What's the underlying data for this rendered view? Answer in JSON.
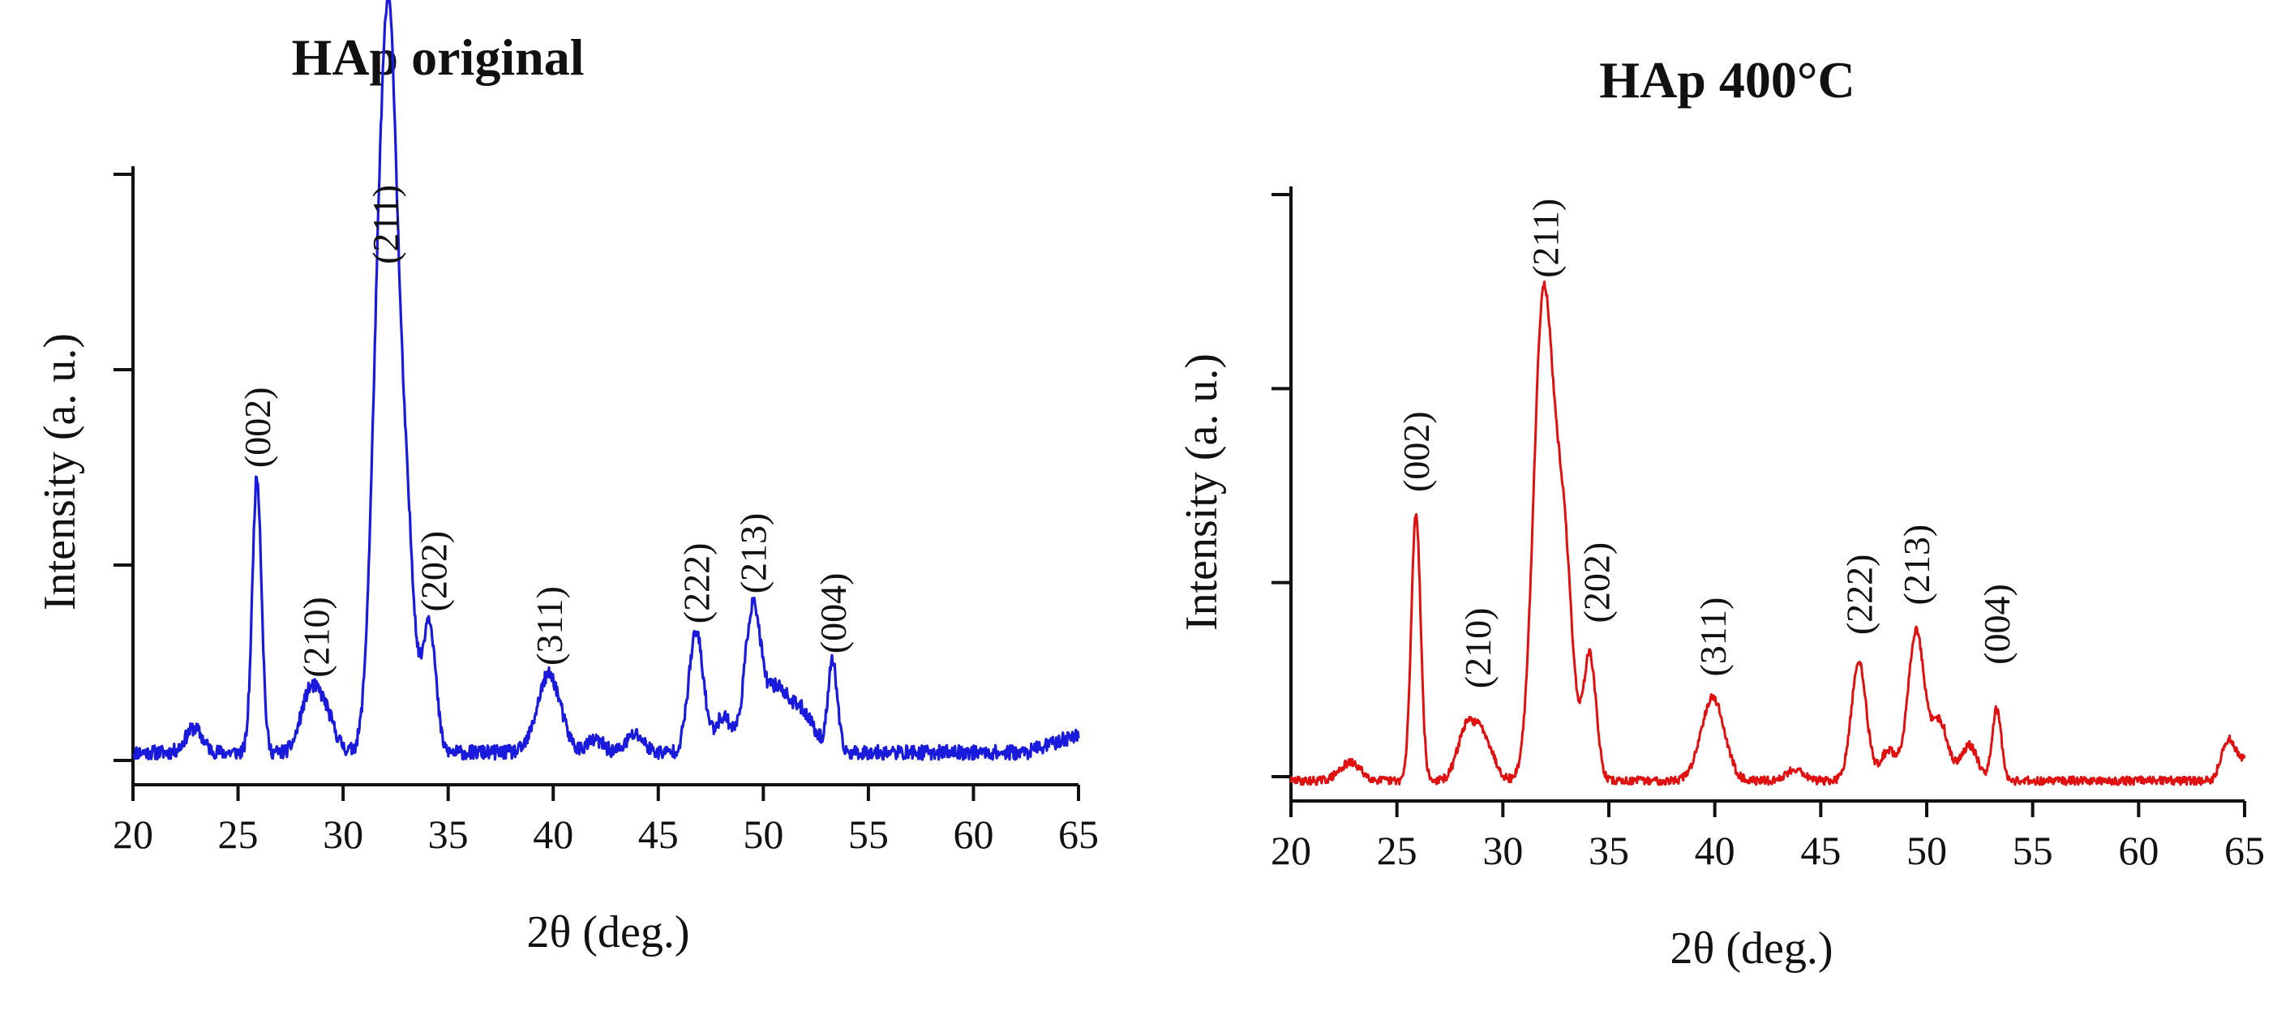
{
  "chart_data": [
    {
      "type": "line",
      "title": "HAp original",
      "xlabel": "2θ (deg.)",
      "ylabel": "Intensity (a. u.)",
      "xlim": [
        20,
        65
      ],
      "ylim": [
        0,
        100
      ],
      "xticks": [
        "20",
        "25",
        "30",
        "35",
        "40",
        "45",
        "50",
        "55",
        "60",
        "65"
      ],
      "yticks_count": 4,
      "grid": false,
      "color": "#1a1adc",
      "baseline": 3.5,
      "noise": 1.2,
      "seed": 11,
      "tail_rise": [
        62.5,
        65,
        3
      ],
      "peaks": [
        {
          "x": 22.9,
          "h": 4,
          "w": 0.4
        },
        {
          "x": 25.9,
          "h": 46,
          "w": 0.22
        },
        {
          "x": 28.3,
          "h": 7,
          "w": 0.4
        },
        {
          "x": 29.0,
          "h": 8,
          "w": 0.5
        },
        {
          "x": 31.8,
          "h": 80,
          "w": 0.42
        },
        {
          "x": 32.3,
          "h": 70,
          "w": 0.34
        },
        {
          "x": 32.95,
          "h": 42,
          "w": 0.4
        },
        {
          "x": 34.1,
          "h": 22,
          "w": 0.3
        },
        {
          "x": 39.8,
          "h": 13,
          "w": 0.55
        },
        {
          "x": 42.0,
          "h": 2,
          "w": 0.4
        },
        {
          "x": 43.9,
          "h": 3,
          "w": 0.4
        },
        {
          "x": 46.8,
          "h": 20,
          "w": 0.35
        },
        {
          "x": 48.1,
          "h": 6,
          "w": 0.4
        },
        {
          "x": 49.5,
          "h": 24,
          "w": 0.38
        },
        {
          "x": 50.6,
          "h": 10,
          "w": 0.5
        },
        {
          "x": 51.8,
          "h": 7,
          "w": 0.6
        },
        {
          "x": 53.3,
          "h": 15,
          "w": 0.22
        }
      ],
      "annotations": [
        {
          "label": "(002)",
          "x": 25.9,
          "y": 51
        },
        {
          "label": "(210)",
          "x": 28.7,
          "y": 16
        },
        {
          "label": "(211)",
          "x": 32.0,
          "y": 85
        },
        {
          "label": "(202)",
          "x": 34.3,
          "y": 27
        },
        {
          "label": "(311)",
          "x": 39.8,
          "y": 18
        },
        {
          "label": "(222)",
          "x": 46.8,
          "y": 25
        },
        {
          "label": "(213)",
          "x": 49.5,
          "y": 30
        },
        {
          "label": "(004)",
          "x": 53.3,
          "y": 20
        }
      ]
    },
    {
      "type": "line",
      "title": "HAp 400°C",
      "xlabel": "2θ (deg.)",
      "ylabel": "Intensity (a. u.)",
      "xlim": [
        20,
        65
      ],
      "ylim": [
        0,
        100
      ],
      "xticks": [
        "20",
        "25",
        "30",
        "35",
        "40",
        "45",
        "50",
        "55",
        "60",
        "65"
      ],
      "yticks_count": 4,
      "grid": false,
      "color": "#e01010",
      "baseline": 1.5,
      "noise": 0.7,
      "seed": 29,
      "tail_rise": [
        63.5,
        65,
        4
      ],
      "peaks": [
        {
          "x": 22.8,
          "h": 3,
          "w": 0.5
        },
        {
          "x": 25.9,
          "h": 45,
          "w": 0.22
        },
        {
          "x": 28.2,
          "h": 7,
          "w": 0.4
        },
        {
          "x": 29.0,
          "h": 8,
          "w": 0.5
        },
        {
          "x": 31.9,
          "h": 80,
          "w": 0.45
        },
        {
          "x": 32.85,
          "h": 40,
          "w": 0.42
        },
        {
          "x": 34.1,
          "h": 21,
          "w": 0.3
        },
        {
          "x": 39.9,
          "h": 14,
          "w": 0.55
        },
        {
          "x": 43.8,
          "h": 2,
          "w": 0.4
        },
        {
          "x": 46.8,
          "h": 20,
          "w": 0.35
        },
        {
          "x": 48.2,
          "h": 5,
          "w": 0.4
        },
        {
          "x": 49.5,
          "h": 25,
          "w": 0.38
        },
        {
          "x": 50.6,
          "h": 10,
          "w": 0.4
        },
        {
          "x": 52.0,
          "h": 6,
          "w": 0.4
        },
        {
          "x": 53.3,
          "h": 12,
          "w": 0.22
        },
        {
          "x": 64.2,
          "h": 5,
          "w": 0.3
        }
      ],
      "annotations": [
        {
          "label": "(002)",
          "x": 25.9,
          "y": 50
        },
        {
          "label": "(210)",
          "x": 28.8,
          "y": 17
        },
        {
          "label": "(211)",
          "x": 32.0,
          "y": 86
        },
        {
          "label": "(202)",
          "x": 34.4,
          "y": 28
        },
        {
          "label": "(311)",
          "x": 39.9,
          "y": 19
        },
        {
          "label": "(222)",
          "x": 46.8,
          "y": 26
        },
        {
          "label": "(213)",
          "x": 49.5,
          "y": 31
        },
        {
          "label": "(004)",
          "x": 53.3,
          "y": 21
        }
      ]
    }
  ]
}
